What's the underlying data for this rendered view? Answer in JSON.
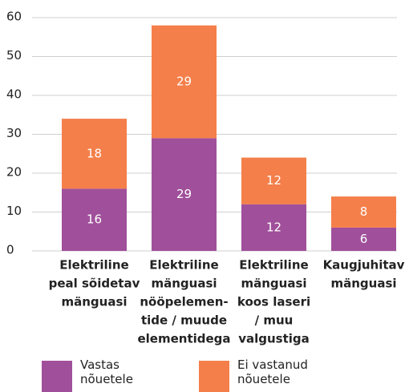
{
  "chart_data": {
    "type": "stacked_bar",
    "categories": [
      [
        "Elektriline",
        "peal sõidetav",
        "mänguasi"
      ],
      [
        "Elektriline",
        "mänguasi",
        "nööpelemen-",
        "tide / muude",
        "elementidega"
      ],
      [
        "Elektriline",
        "mänguasi",
        "koos laseri",
        "/ muu",
        "valgustiga"
      ],
      [
        "Kaugjuhitav",
        "mänguasi"
      ]
    ],
    "series": [
      {
        "name": "Vastas nõuetele",
        "color": "#a0509a",
        "values": [
          16,
          29,
          12,
          6
        ]
      },
      {
        "name": "Ei vastanud nõuetele",
        "color": "#f47f4a",
        "values": [
          18,
          29,
          12,
          8
        ]
      }
    ],
    "ylim": [
      0,
      60
    ],
    "yticks": [
      0,
      10,
      20,
      30,
      40,
      50,
      60
    ],
    "grid": true
  }
}
